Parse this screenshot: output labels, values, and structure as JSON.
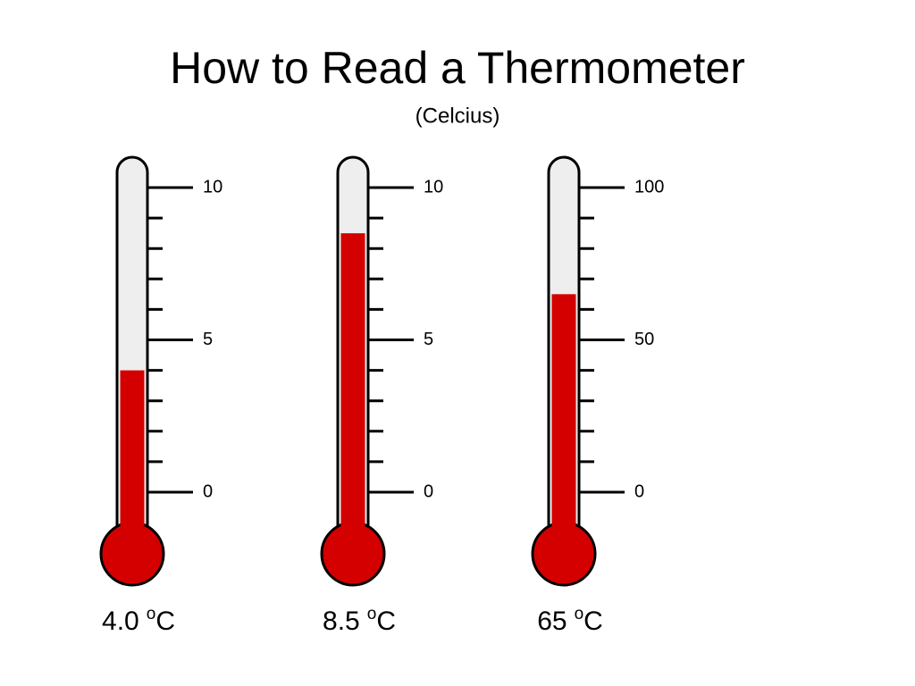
{
  "title": "How to Read a Thermometer",
  "subtitle": "(Celcius)",
  "thermometers": [
    {
      "value": 4.0,
      "value_label": "4.0",
      "degree": "o",
      "unit": "C",
      "range": [
        0,
        10
      ],
      "major_ticks": [
        0,
        5,
        10
      ],
      "minor_ticks": [
        1,
        2,
        3,
        4,
        6,
        7,
        8,
        9
      ]
    },
    {
      "value": 8.5,
      "value_label": "8.5",
      "degree": "o",
      "unit": "C",
      "range": [
        0,
        10
      ],
      "major_ticks": [
        0,
        5,
        10
      ],
      "minor_ticks": [
        1,
        2,
        3,
        4,
        6,
        7,
        8,
        9
      ]
    },
    {
      "value": 65,
      "value_label": "65",
      "degree": "o",
      "unit": "C",
      "range": [
        0,
        100
      ],
      "major_ticks": [
        0,
        50,
        100
      ],
      "minor_ticks": [
        10,
        20,
        30,
        40,
        60,
        70,
        80,
        90
      ]
    }
  ],
  "mercury_color": "#d40000",
  "tube_color": "#eeeeee"
}
